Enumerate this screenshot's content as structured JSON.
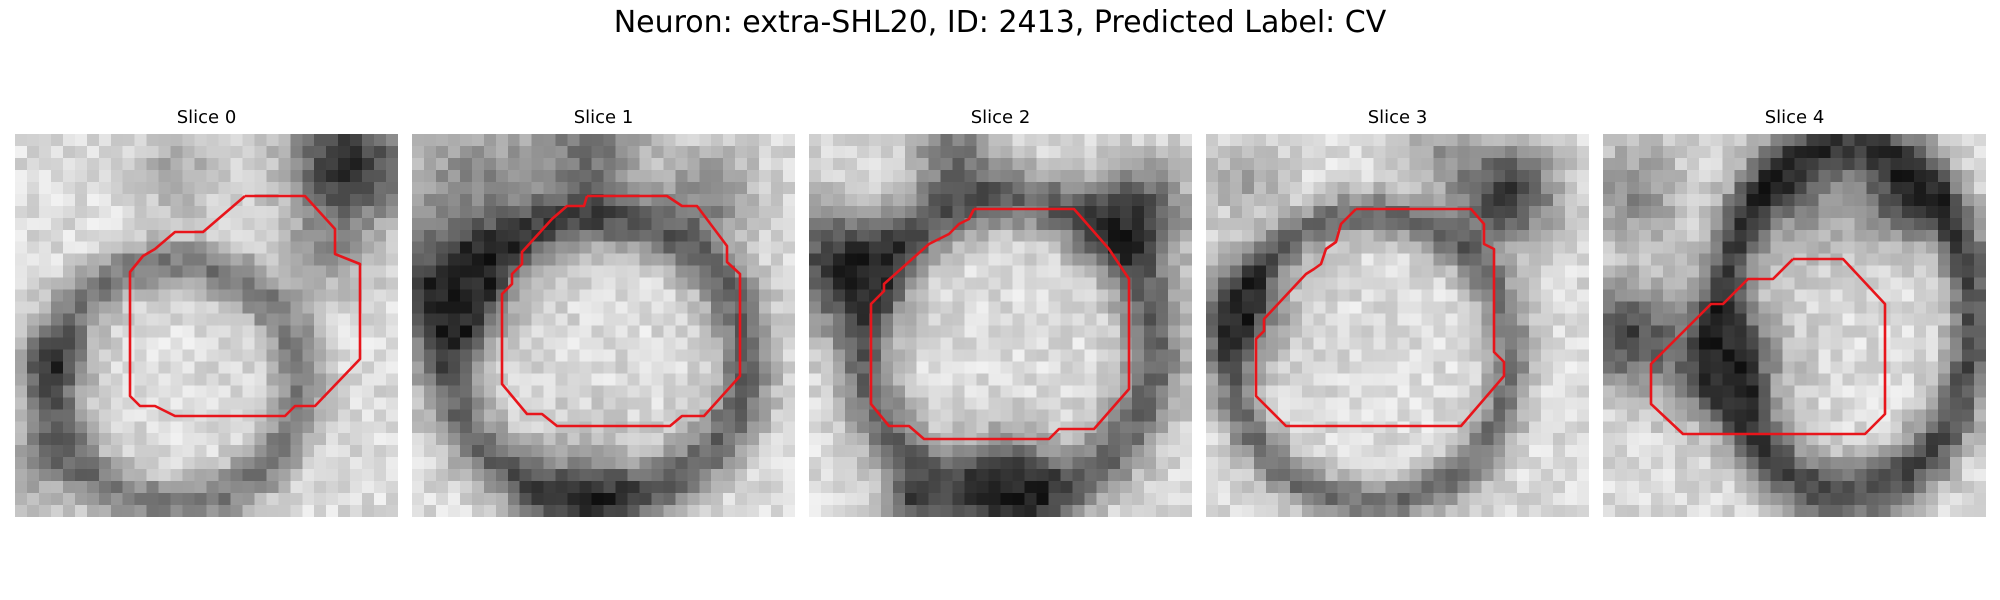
{
  "figure": {
    "title": "Neuron: extra-SHL20, ID: 2413, Predicted Label: CV"
  },
  "colors": {
    "background": "#ffffff",
    "contour": "#e8151b",
    "image_colormap": "grayscale"
  },
  "panels": [
    {
      "title": "Slice 0"
    },
    {
      "title": "Slice 1"
    },
    {
      "title": "Slice 2"
    },
    {
      "title": "Slice 3"
    },
    {
      "title": "Slice 4"
    }
  ]
}
